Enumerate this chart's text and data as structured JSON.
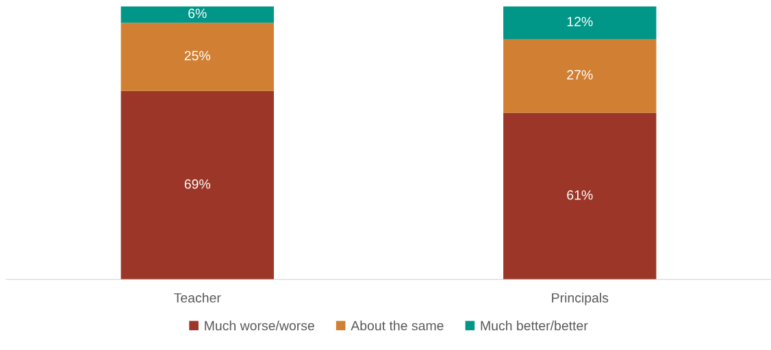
{
  "chart_data": {
    "type": "bar",
    "stacked": true,
    "categories": [
      "Teacher",
      "Principals"
    ],
    "series": [
      {
        "name": "Much worse/worse",
        "color": "#9b3628",
        "values": [
          69,
          61
        ],
        "value_labels": [
          "69%",
          "61%"
        ]
      },
      {
        "name": "About the same",
        "color": "#d17f32",
        "values": [
          25,
          27
        ],
        "value_labels": [
          "25%",
          "27%"
        ]
      },
      {
        "name": "Much better/better",
        "color": "#009688",
        "values": [
          6,
          12
        ],
        "value_labels": [
          "6%",
          "12%"
        ]
      }
    ],
    "legend": "bottom",
    "grid": false,
    "tick_labels": "x"
  }
}
